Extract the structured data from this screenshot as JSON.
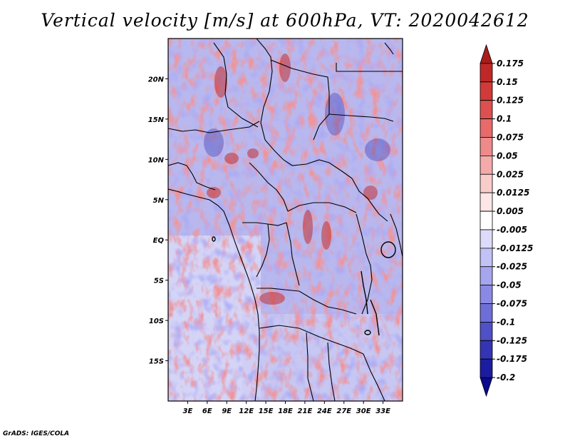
{
  "title": "Vertical velocity [m/s] at 600hPa, VT: 2020042612",
  "credit": "GrADS: IGES/COLA",
  "map": {
    "lon_range": [
      0,
      36
    ],
    "lat_range": [
      -20,
      25
    ],
    "lat_ticks": [
      {
        "value": 20,
        "label": "20N"
      },
      {
        "value": 15,
        "label": "15N"
      },
      {
        "value": 10,
        "label": "10N"
      },
      {
        "value": 5,
        "label": "5N"
      },
      {
        "value": 0,
        "label": "EQ"
      },
      {
        "value": -5,
        "label": "5S"
      },
      {
        "value": -10,
        "label": "10S"
      },
      {
        "value": -15,
        "label": "15S"
      }
    ],
    "lon_ticks": [
      {
        "value": 3,
        "label": "3E"
      },
      {
        "value": 6,
        "label": "6E"
      },
      {
        "value": 9,
        "label": "9E"
      },
      {
        "value": 12,
        "label": "12E"
      },
      {
        "value": 15,
        "label": "15E"
      },
      {
        "value": 18,
        "label": "18E"
      },
      {
        "value": 21,
        "label": "21E"
      },
      {
        "value": 24,
        "label": "24E"
      },
      {
        "value": 27,
        "label": "27E"
      },
      {
        "value": 30,
        "label": "30E"
      },
      {
        "value": 33,
        "label": "33E"
      }
    ]
  },
  "colorbar": {
    "labels": [
      "0.175",
      "0.15",
      "0.125",
      "0.1",
      "0.075",
      "0.05",
      "0.025",
      "0.0125",
      "0.005",
      "-0.005",
      "-0.0125",
      "-0.025",
      "-0.05",
      "-0.075",
      "-0.1",
      "-0.125",
      "-0.175",
      "-0.2"
    ],
    "colors": [
      "#aa1c1c",
      "#c02828",
      "#d23a3a",
      "#de5050",
      "#e86a6a",
      "#ef8a8a",
      "#f5aaaa",
      "#f9cccc",
      "#fde6e6",
      "#ffffff",
      "#dcdcfa",
      "#c2c2f6",
      "#a6a6ef",
      "#8a8ae6",
      "#6e6ed8",
      "#5050c8",
      "#3434b4",
      "#1c1ca0",
      "#0a0a8c"
    ]
  }
}
